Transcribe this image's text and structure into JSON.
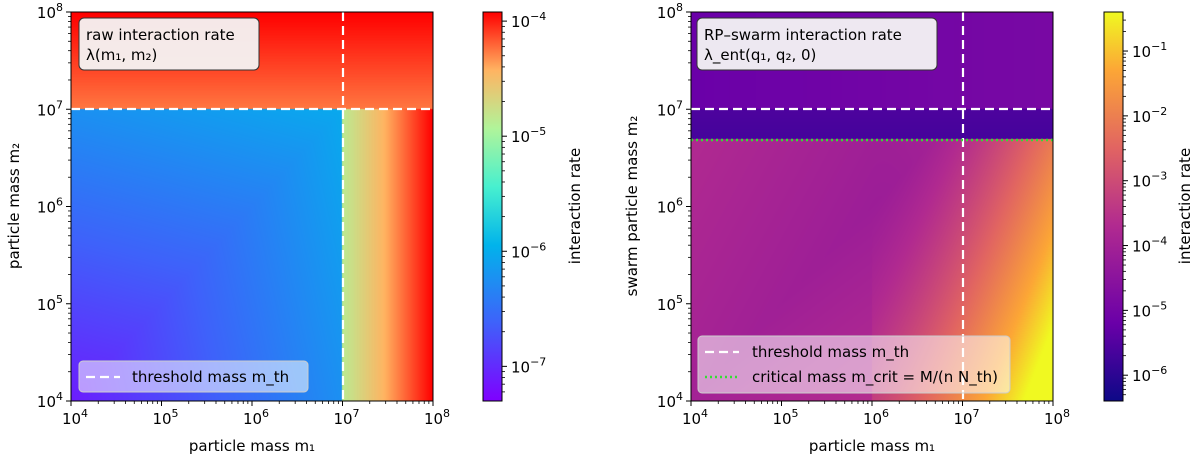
{
  "chart_data": [
    {
      "type": "heatmap",
      "title": "",
      "xlabel": "particle mass m₁",
      "ylabel": "particle mass m₂",
      "xscale": "log",
      "yscale": "log",
      "xlim": [
        10000,
        100000000
      ],
      "ylim": [
        10000,
        100000000
      ],
      "ticks": {
        "x": [
          {
            "base": "10",
            "exp": "4"
          },
          {
            "base": "10",
            "exp": "5"
          },
          {
            "base": "10",
            "exp": "6"
          },
          {
            "base": "10",
            "exp": "7"
          },
          {
            "base": "10",
            "exp": "8"
          }
        ],
        "y": [
          {
            "base": "10",
            "exp": "4"
          },
          {
            "base": "10",
            "exp": "5"
          },
          {
            "base": "10",
            "exp": "6"
          },
          {
            "base": "10",
            "exp": "7"
          },
          {
            "base": "10",
            "exp": "8"
          }
        ]
      },
      "annotation": {
        "line1": "raw interaction rate",
        "line2": "λ(m₁, m₂)"
      },
      "colormap": "rainbow",
      "colorbar": {
        "label": "interaction rate",
        "scale": "log",
        "range": [
          5e-08,
          0.00012
        ],
        "ticks": [
          {
            "base": "10",
            "exp": "−4"
          },
          {
            "base": "10",
            "exp": "−5"
          },
          {
            "base": "10",
            "exp": "−6"
          },
          {
            "base": "10",
            "exp": "−7"
          }
        ]
      },
      "threshold_mass": 10000000,
      "legend": {
        "placement": "lower-left",
        "entries": [
          {
            "label": "threshold mass m_th",
            "style": "dashed",
            "color": "#ffffff"
          }
        ]
      },
      "grid": false
    },
    {
      "type": "heatmap",
      "title": "",
      "xlabel": "particle mass m₁",
      "ylabel": "swarm particle mass m₂",
      "xscale": "log",
      "yscale": "log",
      "xlim": [
        10000,
        100000000
      ],
      "ylim": [
        10000,
        100000000
      ],
      "ticks": {
        "x": [
          {
            "base": "10",
            "exp": "4"
          },
          {
            "base": "10",
            "exp": "5"
          },
          {
            "base": "10",
            "exp": "6"
          },
          {
            "base": "10",
            "exp": "7"
          },
          {
            "base": "10",
            "exp": "8"
          }
        ],
        "y": [
          {
            "base": "10",
            "exp": "4"
          },
          {
            "base": "10",
            "exp": "5"
          },
          {
            "base": "10",
            "exp": "6"
          },
          {
            "base": "10",
            "exp": "7"
          },
          {
            "base": "10",
            "exp": "8"
          }
        ]
      },
      "annotation": {
        "line1": "RP–swarm interaction rate",
        "line2": "λ_ent(q₁, q₂, 0)"
      },
      "colormap": "plasma",
      "colorbar": {
        "label": "interaction rate",
        "scale": "log",
        "range": [
          4e-07,
          0.4
        ],
        "ticks": [
          {
            "base": "10",
            "exp": "−1"
          },
          {
            "base": "10",
            "exp": "−2"
          },
          {
            "base": "10",
            "exp": "−3"
          },
          {
            "base": "10",
            "exp": "−4"
          },
          {
            "base": "10",
            "exp": "−5"
          },
          {
            "base": "10",
            "exp": "−6"
          }
        ]
      },
      "threshold_mass": 10000000,
      "critical_mass": 5000000,
      "legend": {
        "placement": "lower-right",
        "entries": [
          {
            "label": "threshold mass m_th",
            "style": "dashed",
            "color": "#ffffff"
          },
          {
            "label": "critical mass m_crit = M/(n N_th)",
            "style": "dotted",
            "color": "#33dd33"
          }
        ]
      },
      "grid": false
    }
  ]
}
